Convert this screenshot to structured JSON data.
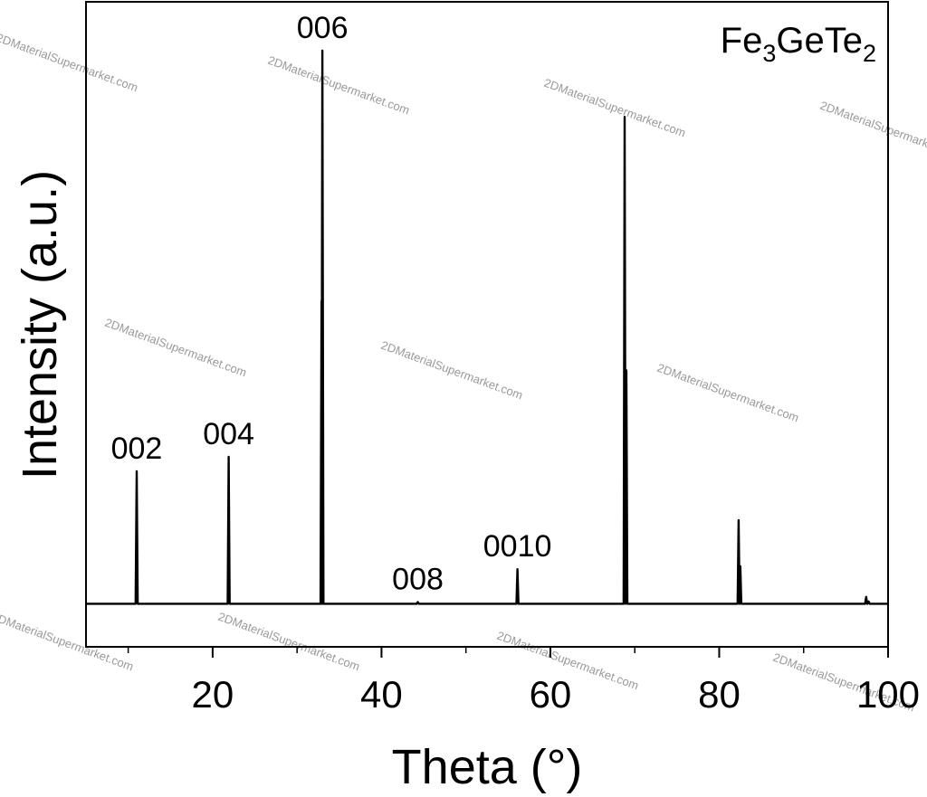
{
  "chart_data": {
    "type": "line",
    "title": "",
    "xlabel": "Theta (°)",
    "ylabel": "Intensity (a.u.)",
    "xlim": [
      5,
      100
    ],
    "ylim": [
      0,
      100
    ],
    "x_ticks": [
      {
        "value": 20,
        "label": "20"
      },
      {
        "value": 40,
        "label": "40"
      },
      {
        "value": 60,
        "label": "60"
      },
      {
        "value": 80,
        "label": "80"
      },
      {
        "value": 100,
        "label": "100"
      }
    ],
    "x_minor_ticks": [
      10,
      30,
      50,
      70,
      90
    ],
    "grid": false,
    "legend": {
      "position": "top-right",
      "base": "Fe",
      "sub1": "3",
      "mid": "GeTe",
      "sub2": "2"
    },
    "series": [
      {
        "baseline": 1.5,
        "peaks": [
          {
            "x": 11.0,
            "y": 24.5
          },
          {
            "x": 21.9,
            "y": 27.0
          },
          {
            "x": 32.9,
            "y": 54.0
          },
          {
            "x": 33.0,
            "y": 97.5
          },
          {
            "x": 44.3,
            "y": 1.8
          },
          {
            "x": 56.1,
            "y": 7.5
          },
          {
            "x": 68.8,
            "y": 86.0
          },
          {
            "x": 69.0,
            "y": 42.0
          },
          {
            "x": 82.3,
            "y": 16.0
          },
          {
            "x": 82.5,
            "y": 8.0
          },
          {
            "x": 97.4,
            "y": 2.7
          },
          {
            "x": 97.7,
            "y": 1.9
          }
        ]
      }
    ],
    "annotations": [
      {
        "x": 11.0,
        "y": 24.5,
        "text": "002"
      },
      {
        "x": 21.9,
        "y": 27.0,
        "text": "004"
      },
      {
        "x": 33.0,
        "y": 97.5,
        "text": "006"
      },
      {
        "x": 44.3,
        "y": 1.8,
        "text": "008"
      },
      {
        "x": 56.1,
        "y": 7.5,
        "text": "0010"
      }
    ]
  },
  "watermark": "2DMaterialSupermarket.com"
}
